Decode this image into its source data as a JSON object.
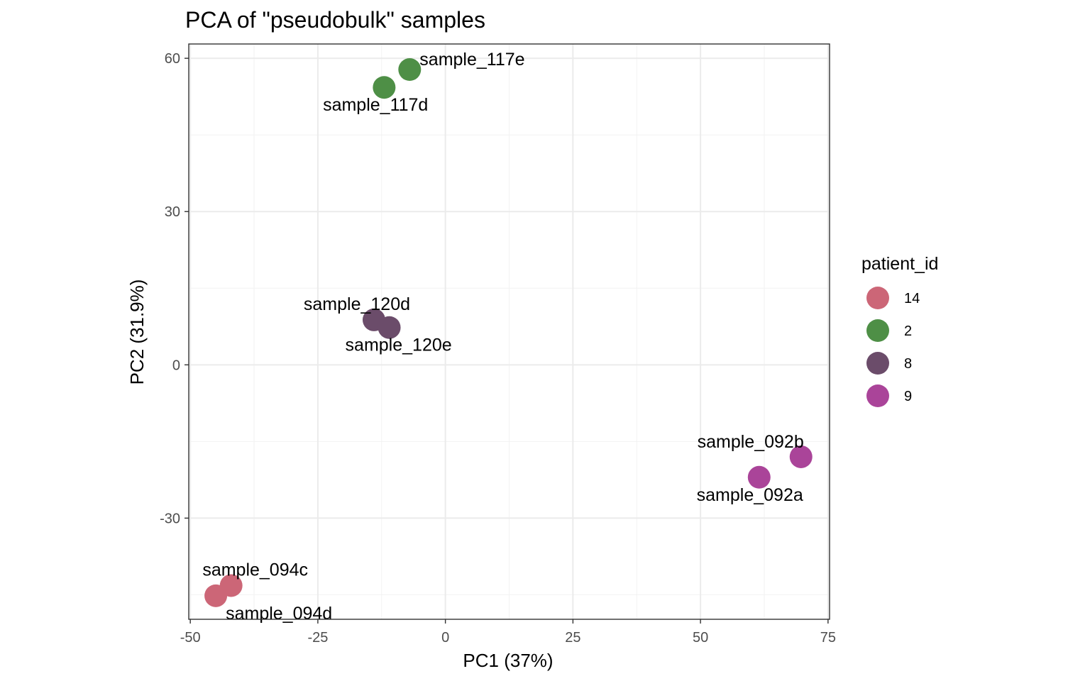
{
  "chart_data": {
    "type": "scatter",
    "title": "PCA of \"pseudobulk\" samples",
    "xlabel": "PC1 (37%)",
    "ylabel": "PC2 (31.9%)",
    "xlim": [
      -50.3,
      75.3
    ],
    "ylim": [
      -49.8,
      62.8
    ],
    "x_ticks": [
      -50,
      -25,
      0,
      25,
      50,
      75
    ],
    "x_tick_labels": [
      "-50",
      "-25",
      "0",
      "25",
      "50",
      "75"
    ],
    "y_ticks": [
      -30,
      0,
      30,
      60
    ],
    "y_tick_labels": [
      "-30",
      "0",
      "30",
      "60"
    ],
    "grid": true,
    "legend": {
      "title": "patient_id",
      "position": "right",
      "entries": [
        {
          "label": "14",
          "color": "#CC6677"
        },
        {
          "label": "2",
          "color": "#4E8F46"
        },
        {
          "label": "8",
          "color": "#6B4C6A"
        },
        {
          "label": "9",
          "color": "#AA4499"
        }
      ]
    },
    "points": [
      {
        "label": "sample_117e",
        "patient_id": "2",
        "x": -7,
        "y": 57.8,
        "label_pos": "above-right"
      },
      {
        "label": "sample_117d",
        "patient_id": "2",
        "x": -12,
        "y": 54.3,
        "label_pos": "below-left"
      },
      {
        "label": "sample_120d",
        "patient_id": "8",
        "x": -14,
        "y": 8.8,
        "label_pos": "above"
      },
      {
        "label": "sample_120e",
        "patient_id": "8",
        "x": -11,
        "y": 7.3,
        "label_pos": "below-right"
      },
      {
        "label": "sample_092b",
        "patient_id": "9",
        "x": 69.7,
        "y": -18,
        "label_pos": "above-left"
      },
      {
        "label": "sample_092a",
        "patient_id": "9",
        "x": 61.5,
        "y": -22,
        "label_pos": "below-left"
      },
      {
        "label": "sample_094c",
        "patient_id": "14",
        "x": -42,
        "y": -43.2,
        "label_pos": "above"
      },
      {
        "label": "sample_094d",
        "patient_id": "14",
        "x": -45,
        "y": -45.2,
        "label_pos": "below-right"
      }
    ]
  }
}
